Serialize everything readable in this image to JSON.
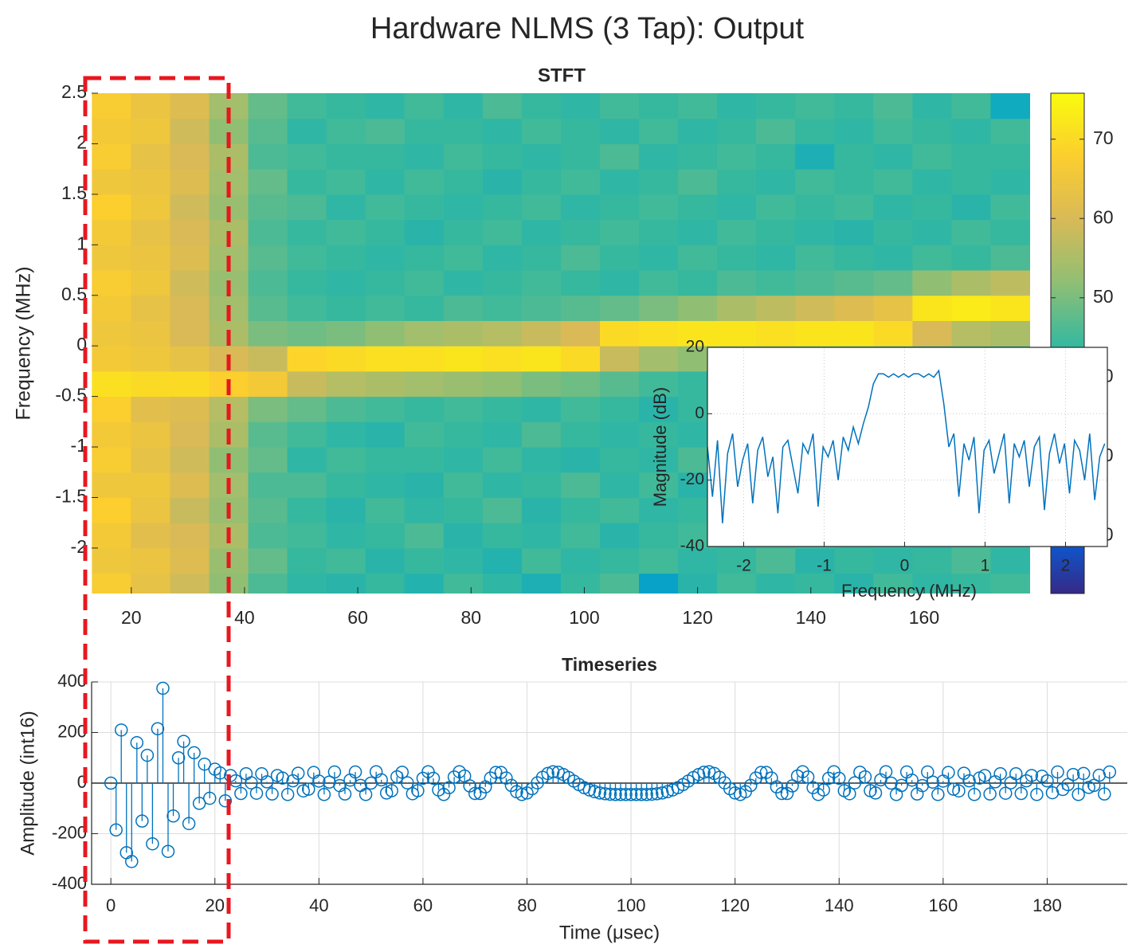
{
  "title": "Hardware NLMS (3 Tap): Output",
  "chart_data": [
    {
      "type": "heatmap",
      "title": "STFT",
      "ylabel": "Frequency (MHz)",
      "colormap": "parula",
      "x": [
        16.5,
        23.4,
        30.3,
        37.2,
        44.1,
        51,
        57.9,
        64.8,
        71.7,
        78.6,
        85.5,
        92.4,
        99.3,
        106.2,
        113.1,
        120,
        126.9,
        133.8,
        140.7,
        147.6,
        154.5,
        161.4,
        168.3,
        175.2
      ],
      "y": [
        -2.375,
        -2.125,
        -1.875,
        -1.625,
        -1.375,
        -1.125,
        -0.875,
        -0.625,
        -0.375,
        -0.125,
        0.125,
        0.375,
        0.625,
        0.875,
        1.125,
        1.375,
        1.625,
        1.875,
        2.125,
        2.375
      ],
      "z": [
        [
          67,
          63,
          59,
          52,
          46,
          43,
          42,
          44,
          41,
          45,
          43,
          40,
          44,
          46,
          35,
          42,
          45,
          43,
          44,
          42,
          45,
          43,
          44,
          45
        ],
        [
          65,
          64,
          61,
          53,
          48,
          44,
          45,
          42,
          44,
          43,
          41,
          45,
          43,
          44,
          45,
          43,
          44,
          46,
          42,
          44,
          43,
          44,
          46,
          43
        ],
        [
          66,
          62,
          60,
          55,
          46,
          45,
          43,
          44,
          46,
          42,
          44,
          43,
          45,
          42,
          44,
          45,
          43,
          44,
          45,
          43,
          44,
          42,
          45,
          44
        ],
        [
          68,
          64,
          58,
          53,
          47,
          44,
          42,
          45,
          43,
          44,
          46,
          42,
          44,
          45,
          43,
          44,
          42,
          45,
          43,
          46,
          42,
          44,
          43,
          45
        ],
        [
          65,
          65,
          61,
          54,
          46,
          46,
          44,
          43,
          42,
          45,
          43,
          44,
          46,
          43,
          45,
          42,
          44,
          43,
          44,
          45,
          43,
          46,
          44,
          43
        ],
        [
          67,
          63,
          59,
          52,
          48,
          43,
          45,
          44,
          44,
          43,
          45,
          43,
          42,
          44,
          43,
          46,
          45,
          44,
          42,
          43,
          44,
          45,
          43,
          44
        ],
        [
          66,
          64,
          60,
          55,
          47,
          45,
          43,
          42,
          45,
          44,
          43,
          46,
          44,
          43,
          44,
          43,
          45,
          42,
          44,
          44,
          45,
          43,
          44,
          42
        ],
        [
          68,
          62,
          61,
          56,
          50,
          48,
          46,
          45,
          44,
          45,
          44,
          43,
          45,
          44,
          42,
          44,
          43,
          45,
          43,
          44,
          43,
          44,
          45,
          44
        ],
        [
          71,
          70,
          70,
          68,
          66,
          58,
          56,
          55,
          54,
          53,
          52,
          50,
          49,
          47,
          45,
          44,
          45,
          44,
          43,
          45,
          44,
          43,
          44,
          45
        ],
        [
          66,
          65,
          63,
          60,
          58,
          69,
          70,
          71,
          71,
          72,
          71,
          72,
          70,
          58,
          54,
          52,
          50,
          49,
          48,
          47,
          46,
          45,
          46,
          44
        ],
        [
          65,
          64,
          60,
          55,
          50,
          49,
          50,
          52,
          54,
          55,
          56,
          58,
          60,
          70,
          71,
          72,
          72,
          71,
          72,
          72,
          70,
          60,
          56,
          55
        ],
        [
          66,
          63,
          60,
          54,
          47,
          45,
          44,
          45,
          44,
          46,
          45,
          46,
          47,
          48,
          50,
          52,
          55,
          57,
          59,
          61,
          63,
          72,
          73,
          72
        ],
        [
          67,
          65,
          59,
          53,
          46,
          44,
          43,
          44,
          45,
          43,
          44,
          45,
          44,
          43,
          45,
          44,
          46,
          45,
          46,
          47,
          48,
          52,
          55,
          57
        ],
        [
          65,
          64,
          61,
          54,
          47,
          45,
          44,
          43,
          44,
          45,
          43,
          44,
          46,
          44,
          43,
          45,
          44,
          43,
          45,
          44,
          43,
          45,
          44,
          46
        ],
        [
          66,
          63,
          60,
          55,
          46,
          44,
          45,
          44,
          42,
          44,
          45,
          43,
          44,
          45,
          44,
          43,
          45,
          44,
          43,
          42,
          44,
          43,
          45,
          44
        ],
        [
          68,
          65,
          59,
          53,
          47,
          46,
          43,
          45,
          44,
          43,
          44,
          45,
          43,
          44,
          45,
          44,
          43,
          45,
          44,
          45,
          43,
          44,
          42,
          45
        ],
        [
          65,
          64,
          61,
          54,
          48,
          44,
          45,
          43,
          45,
          44,
          42,
          44,
          45,
          43,
          44,
          46,
          44,
          43,
          45,
          44,
          45,
          43,
          44,
          43
        ],
        [
          67,
          63,
          60,
          55,
          46,
          45,
          44,
          44,
          43,
          45,
          44,
          43,
          44,
          46,
          43,
          44,
          45,
          44,
          40,
          44,
          43,
          45,
          44,
          44
        ],
        [
          66,
          65,
          59,
          52,
          47,
          43,
          45,
          46,
          44,
          44,
          43,
          45,
          44,
          43,
          45,
          43,
          44,
          46,
          44,
          43,
          45,
          44,
          43,
          45
        ],
        [
          67,
          64,
          61,
          54,
          48,
          45,
          44,
          43,
          45,
          43,
          46,
          44,
          43,
          45,
          44,
          45,
          43,
          44,
          45,
          44,
          46,
          43,
          45,
          38
        ]
      ],
      "xlim": [
        13,
        179
      ],
      "ylim": [
        -2.45,
        2.5
      ],
      "xticks": [
        20,
        40,
        60,
        80,
        100,
        120,
        140,
        160
      ],
      "yticks": [
        -2,
        -1.5,
        -1,
        -0.5,
        0,
        0.5,
        1,
        1.5,
        2,
        2.5
      ],
      "clim": [
        12.7,
        75.8
      ],
      "cticks": [
        20,
        30,
        40,
        50,
        60,
        70
      ]
    },
    {
      "type": "line",
      "xlabel": "Frequency (MHz)",
      "ylabel": "Magnitude (dB)",
      "color": "#0072bd",
      "grid": true,
      "x": [
        -2.45,
        -2.3875,
        -2.325,
        -2.2625,
        -2.2,
        -2.1375,
        -2.075,
        -2.0125,
        -1.95,
        -1.8875,
        -1.825,
        -1.7625,
        -1.7,
        -1.6375,
        -1.575,
        -1.5125,
        -1.45,
        -1.3875,
        -1.325,
        -1.2625,
        -1.2,
        -1.1375,
        -1.075,
        -1.0125,
        -0.95,
        -0.8875,
        -0.825,
        -0.7625,
        -0.7,
        -0.6375,
        -0.575,
        -0.5125,
        -0.45,
        -0.3875,
        -0.325,
        -0.2625,
        -0.2,
        -0.1375,
        -0.075,
        -0.0125,
        0.05,
        0.1125,
        0.175,
        0.2375,
        0.3,
        0.3625,
        0.425,
        0.4875,
        0.55,
        0.6125,
        0.675,
        0.7375,
        0.8,
        0.8625,
        0.925,
        0.9875,
        1.05,
        1.1125,
        1.175,
        1.2375,
        1.3,
        1.3625,
        1.425,
        1.4875,
        1.55,
        1.6125,
        1.675,
        1.7375,
        1.8,
        1.8625,
        1.925,
        1.9875,
        2.05,
        2.1125,
        2.175,
        2.2375,
        2.3,
        2.3625,
        2.425,
        2.4875
      ],
      "values": [
        -10,
        -25,
        -8,
        -33,
        -12,
        -6,
        -22,
        -14,
        -9,
        -27,
        -11,
        -7,
        -19,
        -13,
        -30,
        -10,
        -8,
        -16,
        -24,
        -9,
        -12,
        -6,
        -28,
        -10,
        -13,
        -8,
        -20,
        -7,
        -11,
        -4,
        -9,
        -3,
        2,
        9,
        12,
        12,
        11,
        12,
        11,
        12,
        11,
        12,
        12,
        11,
        12,
        11,
        13,
        3,
        -10,
        -6,
        -25,
        -9,
        -14,
        -7,
        -30,
        -11,
        -8,
        -18,
        -12,
        -6,
        -27,
        -9,
        -13,
        -8,
        -22,
        -10,
        -7,
        -29,
        -12,
        -6,
        -15,
        -9,
        -24,
        -8,
        -11,
        -20,
        -6,
        -26,
        -13,
        -9
      ],
      "xlim": [
        -2.45,
        2.52
      ],
      "ylim": [
        -40,
        20
      ],
      "xticks": [
        -2,
        -1,
        0,
        1,
        2
      ],
      "yticks": [
        -40,
        -20,
        0,
        20
      ]
    },
    {
      "type": "stem",
      "title": "Timeseries",
      "xlabel": "Time (μsec)",
      "ylabel": "Amplitude (int16)",
      "color": "#0072bd",
      "grid": true,
      "x": [
        0,
        1,
        2,
        3,
        4,
        5,
        6,
        7,
        8,
        9,
        10,
        11,
        12,
        13,
        14,
        15,
        16,
        17,
        18,
        19,
        20,
        21,
        22,
        23,
        24,
        25,
        26,
        27,
        28,
        29,
        30,
        31,
        32,
        33,
        34,
        35,
        36,
        37,
        38,
        39,
        40,
        41,
        42,
        43,
        44,
        45,
        46,
        47,
        48,
        49,
        50,
        51,
        52,
        53,
        54,
        55,
        56,
        57,
        58,
        59,
        60,
        61,
        62,
        63,
        64,
        65,
        66,
        67,
        68,
        69,
        70,
        71,
        72,
        73,
        74,
        75,
        76,
        77,
        78,
        79,
        80,
        81,
        82,
        83,
        84,
        85,
        86,
        87,
        88,
        89,
        90,
        91,
        92,
        93,
        94,
        95,
        96,
        97,
        98,
        99,
        100,
        101,
        102,
        103,
        104,
        105,
        106,
        107,
        108,
        109,
        110,
        111,
        112,
        113,
        114,
        115,
        116,
        117,
        118,
        119,
        120,
        121,
        122,
        123,
        124,
        125,
        126,
        127,
        128,
        129,
        130,
        131,
        132,
        133,
        134,
        135,
        136,
        137,
        138,
        139,
        140,
        141,
        142,
        143,
        144,
        145,
        146,
        147,
        148,
        149,
        150,
        151,
        152,
        153,
        154,
        155,
        156,
        157,
        158,
        159,
        160,
        161,
        162,
        163,
        164,
        165,
        166,
        167,
        168,
        169,
        170,
        171,
        172,
        173,
        174,
        175,
        176,
        177,
        178,
        179,
        180,
        181,
        182,
        183,
        184,
        185,
        186,
        187,
        188,
        189,
        190,
        191,
        192
      ],
      "values": [
        0,
        -185,
        210,
        -275,
        -310,
        160,
        -150,
        110,
        -240,
        215,
        375,
        -270,
        -130,
        100,
        165,
        -160,
        120,
        -80,
        75,
        -60,
        55,
        40,
        -70,
        30,
        9,
        -41,
        37,
        1,
        -40,
        37,
        5,
        -43,
        30,
        20,
        -45,
        9,
        39,
        -31,
        -24,
        42,
        8,
        -45,
        4,
        44,
        -10,
        -43,
        12,
        44,
        -9,
        -45,
        0,
        45,
        13,
        -39,
        -30,
        25,
        43,
        1,
        -42,
        -30,
        19,
        45,
        19,
        -27,
        -45,
        -18,
        24,
        45,
        28,
        -11,
        -41,
        -41,
        -15,
        20,
        42,
        42,
        20,
        -9,
        -34,
        -45,
        -39,
        -22,
        1,
        23,
        38,
        45,
        43,
        34,
        22,
        8,
        -6,
        -18,
        -27,
        -34,
        -39,
        -42,
        -44,
        -45,
        -45,
        -45,
        -45,
        -45,
        -45,
        -45,
        -44,
        -42,
        -39,
        -34,
        -27,
        -18,
        -6,
        8,
        22,
        34,
        43,
        45,
        38,
        23,
        1,
        -22,
        -39,
        -45,
        -34,
        -9,
        20,
        42,
        42,
        20,
        -15,
        -41,
        -41,
        -11,
        28,
        45,
        24,
        -18,
        -45,
        -27,
        19,
        45,
        19,
        -30,
        -42,
        1,
        43,
        25,
        -30,
        -39,
        13,
        45,
        0,
        -45,
        -9,
        44,
        12,
        -43,
        -10,
        44,
        4,
        -45,
        8,
        42,
        -24,
        -31,
        39,
        9,
        -45,
        20,
        30,
        -43,
        5,
        37,
        -40,
        1,
        37,
        -41,
        9,
        30,
        -45,
        27,
        9,
        -38,
        44,
        -25,
        -6,
        34,
        -45,
        38,
        -17,
        -9,
        31,
        -43,
        44
      ],
      "xlim": [
        -3.7,
        195.4
      ],
      "ylim": [
        -400,
        400
      ],
      "xticks": [
        0,
        20,
        40,
        60,
        80,
        100,
        120,
        140,
        160,
        180
      ],
      "yticks": [
        -400,
        -200,
        0,
        200,
        400
      ]
    }
  ]
}
